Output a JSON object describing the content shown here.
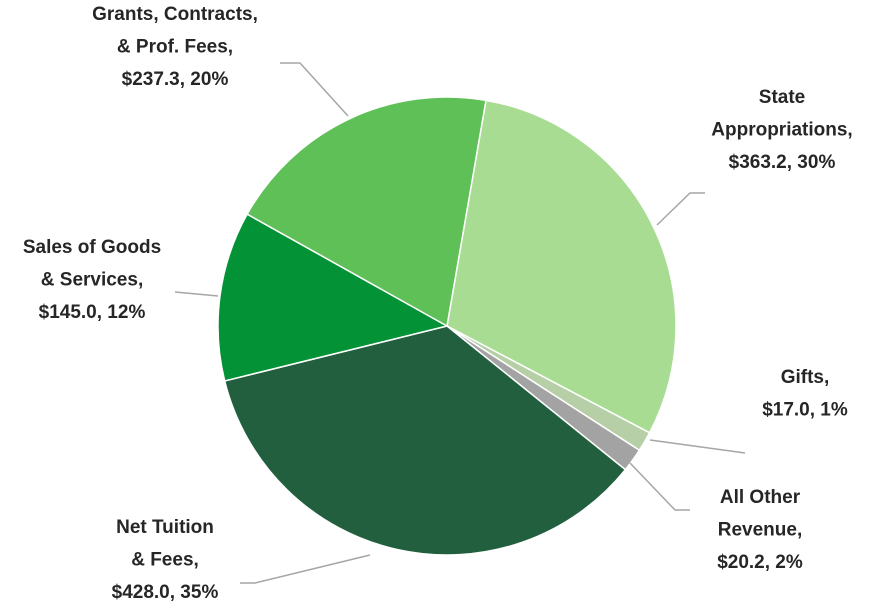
{
  "chart_data": {
    "type": "pie",
    "categories": [
      "State\nAppropriations,",
      "Gifts,",
      "All Other\nRevenue,",
      "Net Tuition\n& Fees,",
      "Sales of Goods\n& Services,",
      "Grants, Contracts,\n& Prof. Fees,"
    ],
    "values": [
      363.2,
      17.0,
      20.2,
      428.0,
      145.0,
      237.3
    ],
    "value_labels": [
      "$363.2, 30%",
      "$17.0, 1%",
      "$20.2, 2%",
      "$428.0, 35%",
      "$145.0, 12%",
      "$237.3, 20%"
    ],
    "colors": [
      "#a9dc93",
      "#b7cfa6",
      "#a3a3a3",
      "#215f3f",
      "#039236",
      "#5fc057"
    ]
  }
}
